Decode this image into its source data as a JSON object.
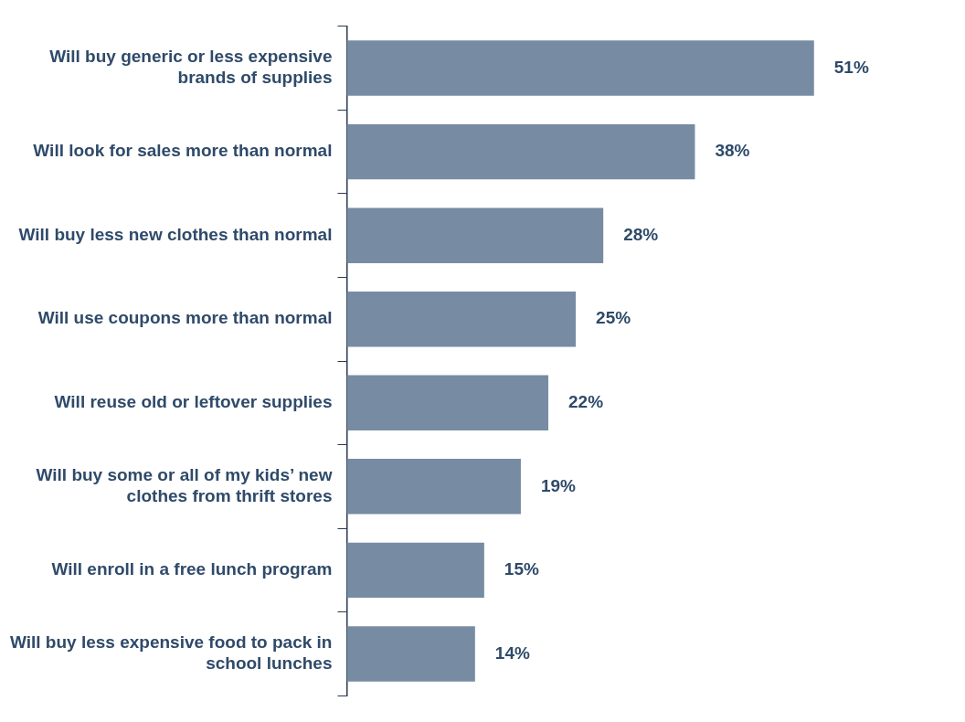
{
  "chart_data": {
    "type": "bar",
    "orientation": "horizontal",
    "categories": [
      "Will buy generic or less expensive brands of supplies",
      "Will look for sales more than normal",
      "Will buy less new clothes than normal",
      "Will use coupons more than normal",
      "Will reuse old or leftover supplies",
      "Will buy some or all of my kids’ new clothes from thrift stores",
      "Will enroll in a free lunch program",
      "Will buy less expensive food to pack in school lunches"
    ],
    "values": [
      51,
      38,
      28,
      25,
      22,
      19,
      15,
      14
    ],
    "value_labels": [
      "51%",
      "38%",
      "28%",
      "25%",
      "22%",
      "19%",
      "15%",
      "14%"
    ],
    "color": "#778ca3"
  }
}
